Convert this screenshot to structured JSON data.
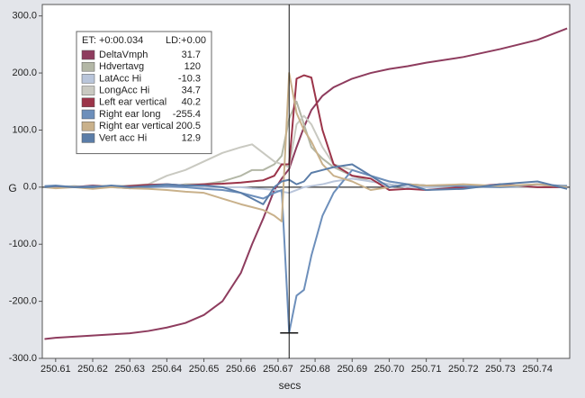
{
  "chart_data": {
    "type": "line",
    "x_label": "secs",
    "y_label": "G",
    "xlim": [
      250.6064,
      250.7487
    ],
    "ylim": [
      -300,
      320
    ],
    "xticks": [
      250.61,
      250.62,
      250.63,
      250.64,
      250.65,
      250.66,
      250.67,
      250.68,
      250.69,
      {
        "value": 250.7,
        "label": "250.70"
      },
      250.71,
      250.72,
      250.73,
      250.74
    ],
    "yticks": [
      {
        "value": -300,
        "label": "-300.0"
      },
      {
        "value": -200,
        "label": "-200.0"
      },
      {
        "value": -100,
        "label": "-100.0"
      },
      {
        "value": 0,
        "label": "0.0"
      },
      {
        "value": 100,
        "label": "100.0"
      },
      {
        "value": 200,
        "label": "200.0"
      },
      {
        "value": 300,
        "label": "300.0"
      }
    ],
    "cursor_x": 250.673,
    "legend_header": {
      "left": "ET: +0:00.034",
      "right": "LD:+0.00"
    },
    "x": [
      250.607,
      250.61,
      250.615,
      250.62,
      250.625,
      250.63,
      250.635,
      250.64,
      250.645,
      250.65,
      250.655,
      250.66,
      250.663,
      250.666,
      250.669,
      250.671,
      250.673,
      250.675,
      250.677,
      250.679,
      250.682,
      250.685,
      250.69,
      250.695,
      250.7,
      250.705,
      250.71,
      250.72,
      250.73,
      250.74,
      250.748
    ],
    "series": [
      {
        "name": "DeltaVmph",
        "color": "#8e3c5e",
        "readout": 31.7,
        "values": [
          -266,
          -264,
          -262,
          -260,
          -258,
          -256,
          -252,
          -246,
          -238,
          -224,
          -200,
          -150,
          -100,
          -55,
          -5,
          15,
          32,
          70,
          105,
          135,
          160,
          175,
          190,
          200,
          207,
          212,
          218,
          228,
          242,
          258,
          278
        ]
      },
      {
        "name": "Hdvertavg",
        "color": "#b3b7a6",
        "readout": 120,
        "values": [
          0,
          0,
          2,
          0,
          0,
          3,
          2,
          0,
          5,
          5,
          10,
          20,
          30,
          30,
          40,
          55,
          120,
          150,
          110,
          70,
          50,
          35,
          20,
          10,
          5,
          0,
          2,
          0,
          0,
          0,
          0
        ]
      },
      {
        "name": "LatAcc Hi",
        "color": "#b9c5da",
        "readout": -10.3,
        "values": [
          0,
          0,
          0,
          0,
          0,
          0,
          0,
          0,
          0,
          0,
          0,
          0,
          -2,
          -3,
          -5,
          -8,
          -10,
          -5,
          0,
          2,
          5,
          10,
          15,
          10,
          5,
          0,
          0,
          0,
          0,
          0,
          0
        ]
      },
      {
        "name": "LongAcc Hi",
        "color": "#c9c9c1",
        "readout": 34.7,
        "values": [
          0,
          2,
          0,
          3,
          2,
          3,
          5,
          20,
          30,
          45,
          60,
          70,
          75,
          60,
          45,
          40,
          35,
          110,
          125,
          110,
          70,
          40,
          30,
          20,
          10,
          5,
          3,
          0,
          2,
          0,
          3
        ]
      },
      {
        "name": "Left ear vertical",
        "color": "#9b3449",
        "readout": 40.2,
        "values": [
          0,
          2,
          0,
          3,
          0,
          2,
          4,
          5,
          3,
          5,
          6,
          8,
          10,
          12,
          20,
          40,
          40,
          190,
          196,
          192,
          100,
          40,
          20,
          15,
          -5,
          -3,
          -5,
          0,
          5,
          0,
          0
        ]
      },
      {
        "name": "Right ear long",
        "color": "#6d8fbb",
        "readout": -255.4,
        "values": [
          2,
          3,
          0,
          2,
          0,
          -2,
          0,
          2,
          0,
          -3,
          -5,
          -10,
          -15,
          -20,
          -10,
          -5,
          -255,
          -190,
          -180,
          -120,
          -50,
          -10,
          30,
          20,
          10,
          5,
          3,
          2,
          0,
          5,
          2
        ]
      },
      {
        "name": "Right ear vertical",
        "color": "#c9b18b",
        "readout": 200.5,
        "values": [
          0,
          -2,
          0,
          -3,
          0,
          -2,
          -3,
          -5,
          -8,
          -10,
          -20,
          -30,
          -35,
          -40,
          -50,
          -60,
          200,
          130,
          100,
          80,
          40,
          20,
          10,
          -5,
          0,
          5,
          3,
          5,
          2,
          5,
          0
        ]
      },
      {
        "name": "Vert acc Hi",
        "color": "#5b7da8",
        "readout": 12.9,
        "values": [
          0,
          2,
          0,
          0,
          3,
          0,
          2,
          5,
          3,
          3,
          0,
          -10,
          -20,
          -30,
          0,
          10,
          13,
          5,
          10,
          25,
          30,
          35,
          40,
          20,
          0,
          5,
          -5,
          -3,
          5,
          10,
          -3
        ]
      }
    ]
  }
}
